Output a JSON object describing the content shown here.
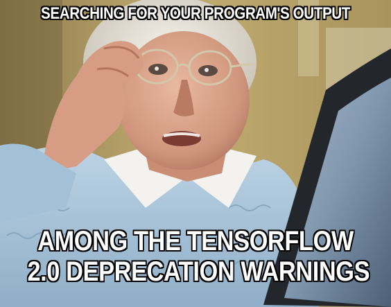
{
  "meme": {
    "top_text": "SEARCHING FOR YOUR PROGRAM'S OUTPUT",
    "bottom_line_1": "AMONG THE TENSORFLOW",
    "bottom_line_2": "2.0 DEPRECATION WARNINGS"
  },
  "colors": {
    "caption_fill": "#ffffff",
    "caption_outline": "#000000",
    "wall": "#b7a46a",
    "sweater": "#a9c6dc",
    "monitor": "#23262b",
    "screen": "#7f96ad"
  },
  "photo": {
    "subject": "elderly-woman-adjusting-glasses-icon",
    "device": "computer-monitor-icon"
  }
}
